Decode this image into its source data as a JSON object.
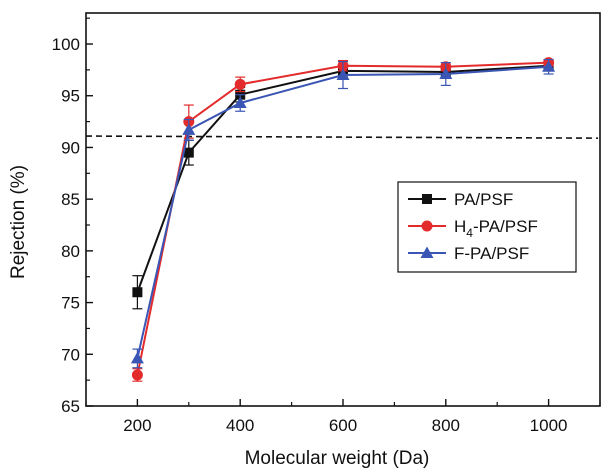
{
  "chart_data": {
    "type": "line",
    "xlabel": "Molecular weight (Da)",
    "ylabel": "Rejection (%)",
    "xlim": [
      100,
      1100
    ],
    "ylim": [
      65,
      103
    ],
    "xticks": [
      200,
      400,
      600,
      800,
      1000
    ],
    "yticks": [
      65,
      70,
      75,
      80,
      85,
      90,
      95,
      100
    ],
    "x": [
      200,
      300,
      400,
      600,
      800,
      1000
    ],
    "series": [
      {
        "name": "PA/PSF",
        "name_main": "PA/PSF",
        "name_sub": "",
        "name_tail": "",
        "color": "#111111",
        "marker": "square",
        "values": [
          76.0,
          89.5,
          95.1,
          97.4,
          97.3,
          97.9
        ],
        "errors": [
          1.6,
          1.2,
          0.7,
          0.6,
          0.6,
          0.5
        ]
      },
      {
        "name": "H4-PA/PSF",
        "name_main": "H",
        "name_sub": "4",
        "name_tail": "-PA/PSF",
        "color": "#e32b2b",
        "marker": "circle",
        "values": [
          68.0,
          92.5,
          96.1,
          97.9,
          97.8,
          98.2
        ],
        "errors": [
          0.6,
          1.6,
          0.7,
          0.5,
          0.4,
          0.3
        ]
      },
      {
        "name": "F-PA/PSF",
        "name_main": "F-PA/PSF",
        "name_sub": "",
        "name_tail": "",
        "color": "#3a55b4",
        "marker": "triangle",
        "values": [
          69.6,
          91.7,
          94.3,
          97.0,
          97.1,
          97.8
        ],
        "errors": [
          0.9,
          1.0,
          0.8,
          1.3,
          1.1,
          0.7
        ]
      }
    ],
    "reference_line": {
      "style": "dashed",
      "y_start": 91.1,
      "y_end": 90.9
    },
    "legend_position": "right-middle",
    "grid": false
  }
}
